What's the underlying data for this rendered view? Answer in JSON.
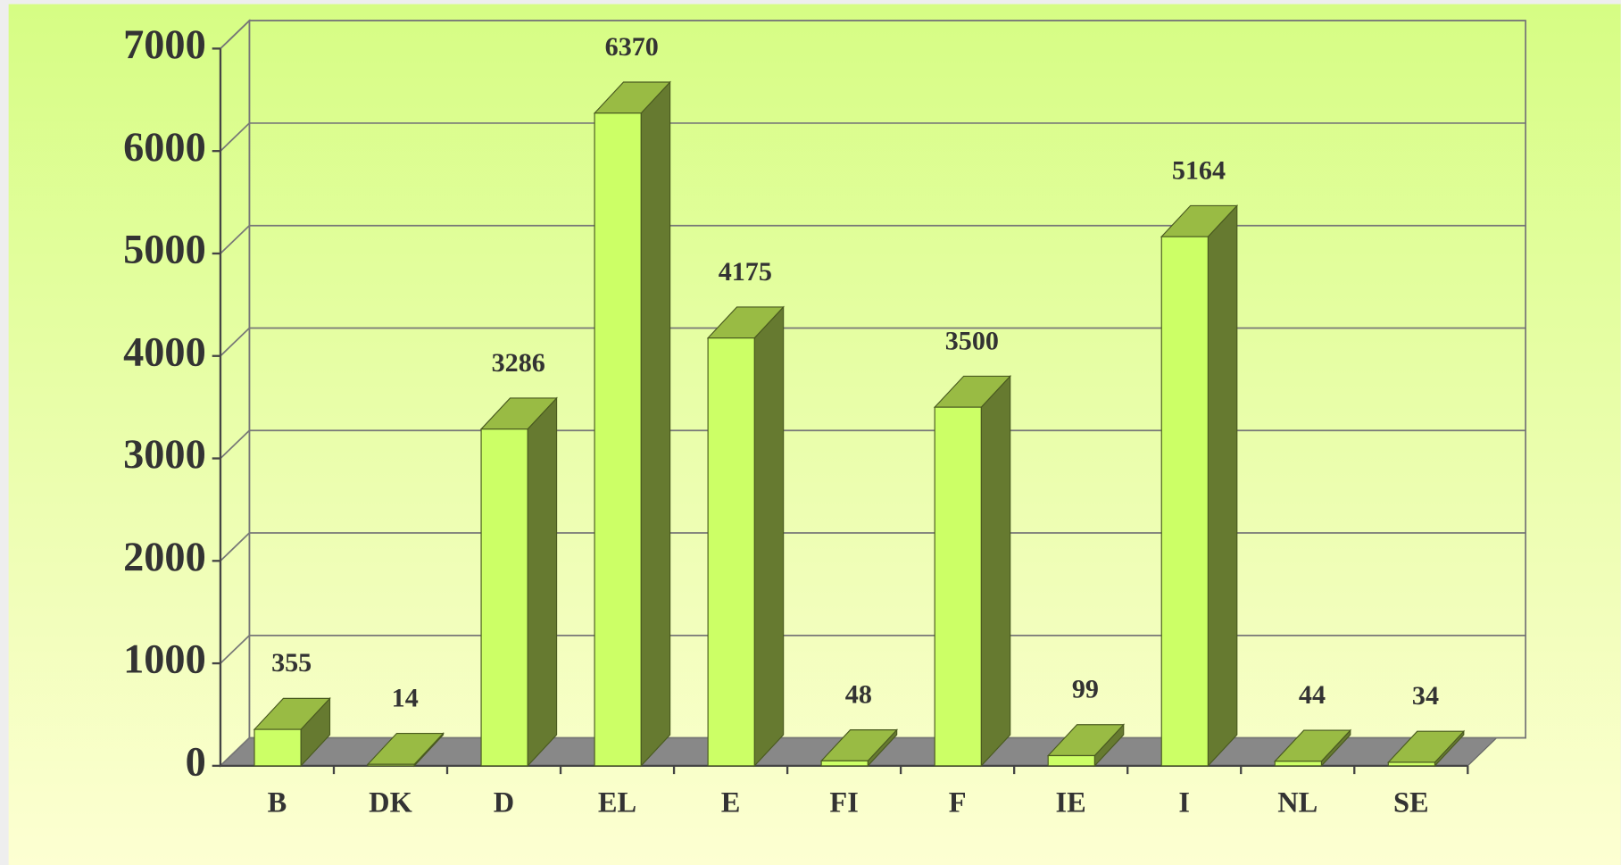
{
  "chart_data": {
    "type": "bar3d",
    "categories": [
      "B",
      "DK",
      "D",
      "EL",
      "E",
      "FI",
      "F",
      "IE",
      "I",
      "NL",
      "SE"
    ],
    "values": [
      355,
      14,
      3286,
      6370,
      4175,
      48,
      3500,
      99,
      5164,
      44,
      34
    ],
    "color": "#ccff66",
    "ylim": [
      0,
      7000
    ],
    "yticks": [
      0,
      1000,
      2000,
      3000,
      4000,
      5000,
      6000,
      7000
    ],
    "grid": true
  }
}
